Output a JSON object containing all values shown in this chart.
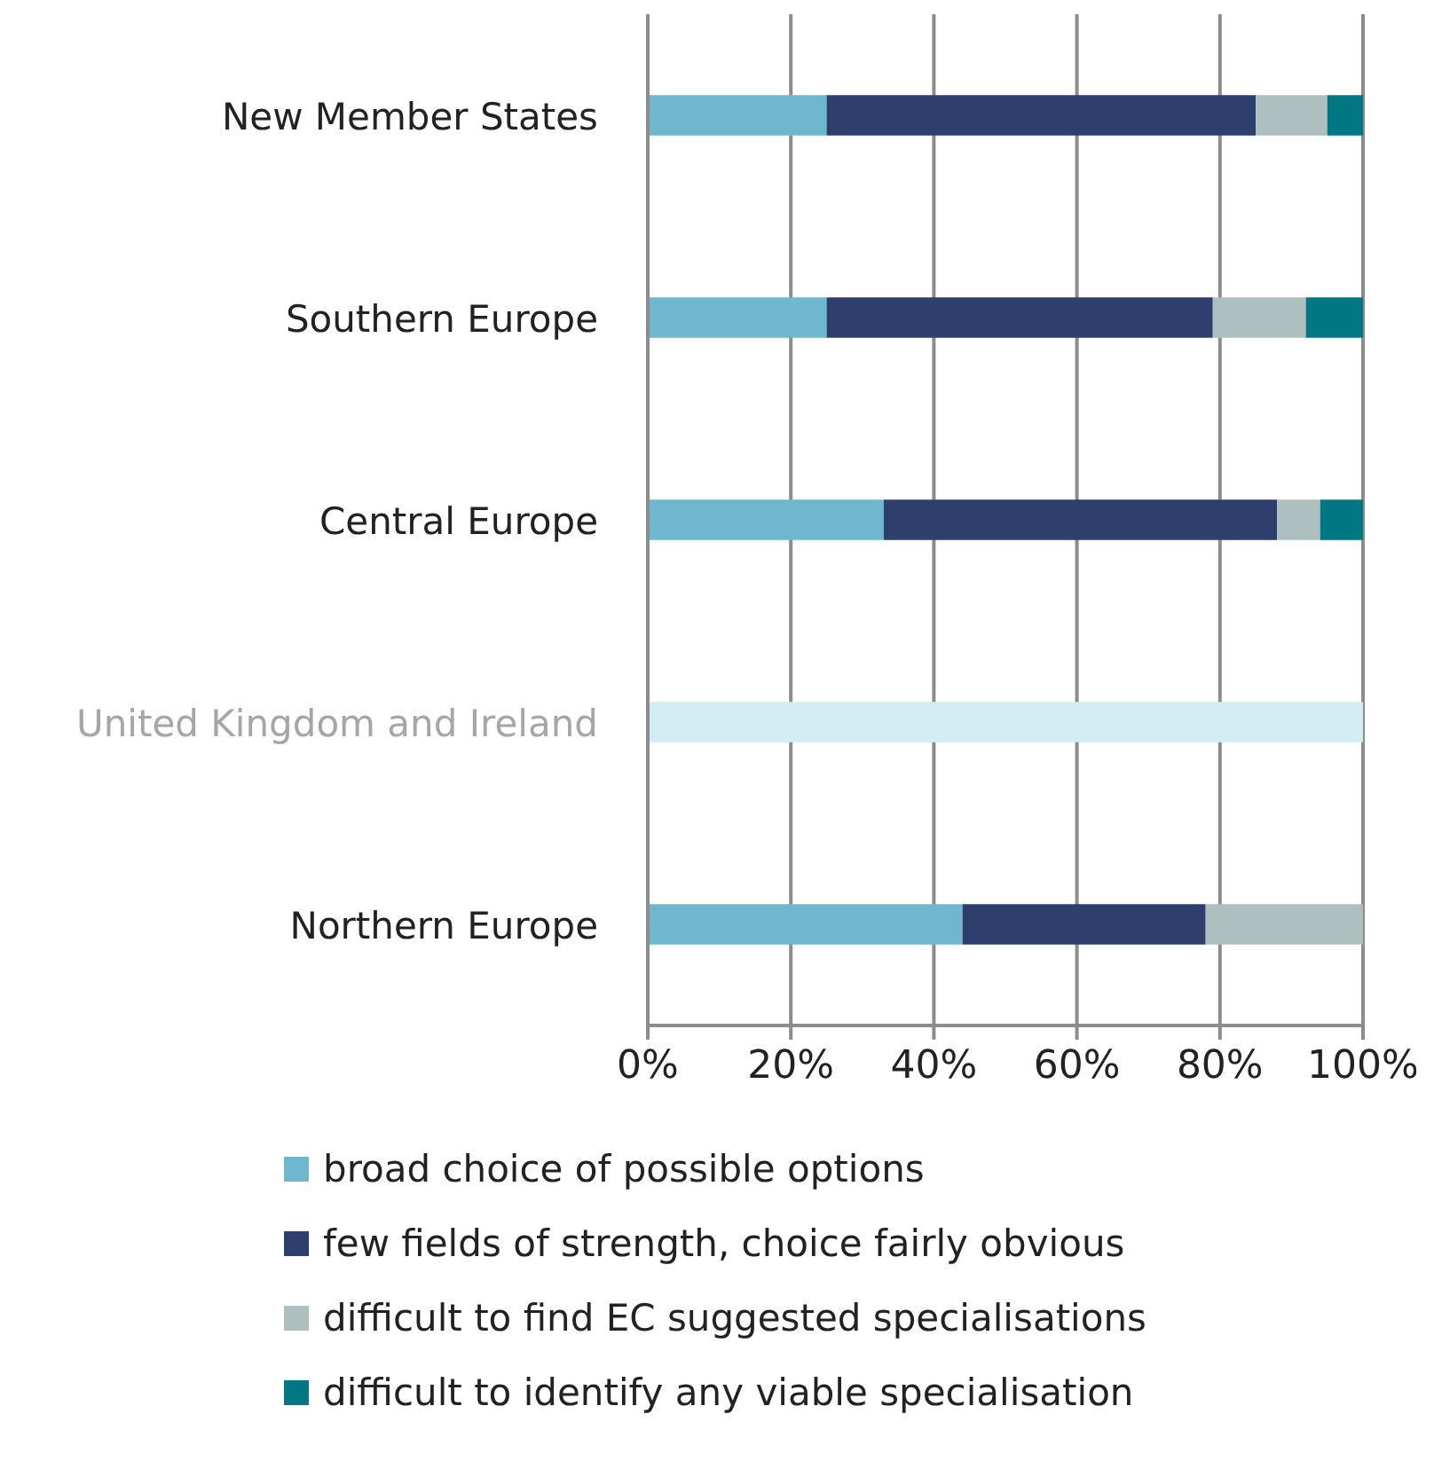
{
  "chart_data": {
    "type": "bar",
    "orientation": "horizontal",
    "stacked": true,
    "categories": [
      "New Member States",
      "Southern Europe",
      "Central Europe",
      "United Kingdom and Ireland",
      "Northern Europe"
    ],
    "series": [
      {
        "name": "broad choice of possible options",
        "color": "#6fb7cf",
        "values": [
          25,
          25,
          33,
          null,
          44
        ]
      },
      {
        "name": "few fields of strength, choice fairly obvious",
        "color": "#2f3f6d",
        "values": [
          60,
          54,
          55,
          null,
          34
        ]
      },
      {
        "name": "difficult to find EC suggested specialisations",
        "color": "#adbfbf",
        "values": [
          10,
          13,
          6,
          null,
          22
        ]
      },
      {
        "name": "difficult to identify any viable specialisation",
        "color": "#007782",
        "values": [
          5,
          8,
          6,
          null,
          0
        ]
      },
      {
        "color": "#d3ecf4",
        "values": [
          null,
          null,
          null,
          100,
          null
        ]
      }
    ],
    "xlim": [
      0,
      100
    ],
    "xticks": [
      {
        "value": 0,
        "label": "0%"
      },
      {
        "value": 20,
        "label": "20%"
      },
      {
        "value": 40,
        "label": "40%"
      },
      {
        "value": 60,
        "label": "60%"
      },
      {
        "value": 80,
        "label": "80%"
      },
      {
        "value": 100,
        "label": "100%"
      }
    ],
    "grid": "x",
    "legend": "bottom"
  }
}
